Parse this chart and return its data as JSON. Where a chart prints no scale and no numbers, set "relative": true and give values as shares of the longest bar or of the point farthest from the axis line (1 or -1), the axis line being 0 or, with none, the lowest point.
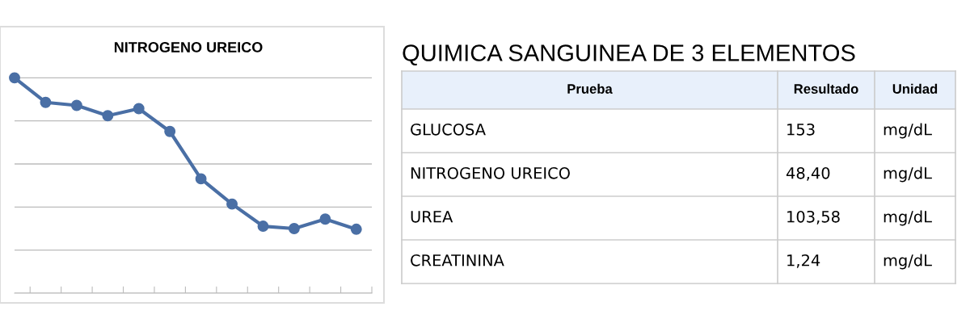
{
  "chart_data": [
    {
      "type": "line",
      "title": "NITROGENO UREICO",
      "relative": true,
      "categories": [
        null,
        null,
        null,
        null,
        null,
        null,
        null,
        null,
        null,
        null,
        null,
        null
      ],
      "series": [
        {
          "color": "#4a6fa5",
          "values": [
            1,
            0.886,
            0.872,
            0.824,
            0.857,
            0.751,
            0.531,
            0.414,
            0.311,
            0.3,
            0.344,
            0.297
          ]
        }
      ],
      "marker": "circle",
      "line_style": "solid",
      "grid": "y",
      "legend": false
    },
    {
      "type": "other",
      "title": "QUIMICA SANGUINEA DE 3 ELEMENTOS",
      "categories": [
        "Prueba",
        "Resultado",
        "Unidad"
      ],
      "cell_labels": [
        [
          "GLUCOSA",
          "153",
          "mg/dL"
        ],
        [
          "NITROGENO UREICO",
          "48,40",
          "mg/dL"
        ],
        [
          "UREA",
          "103,58",
          "mg/dL"
        ],
        [
          "CREATININA",
          "1,24",
          "mg/dL"
        ]
      ]
    }
  ]
}
